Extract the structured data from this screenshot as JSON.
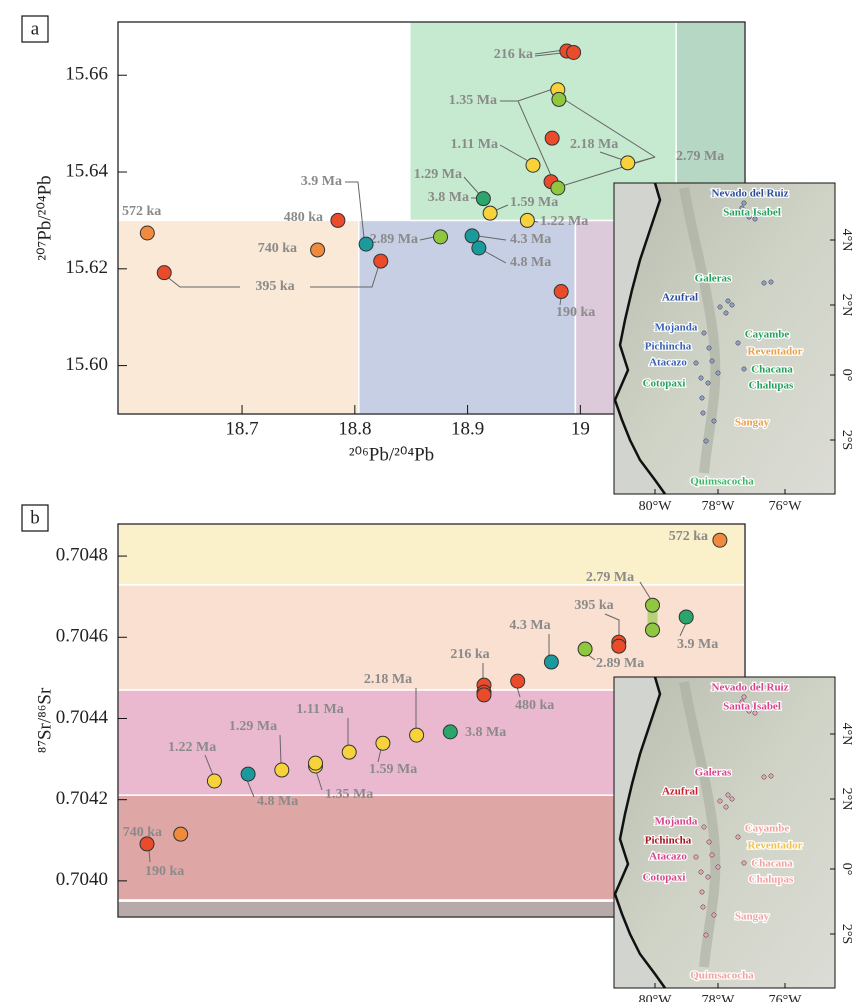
{
  "chart_data": [
    {
      "type": "scatter",
      "panel": "a",
      "x_label": "²⁰⁶Pb/²⁰⁴Pb",
      "y_label": "²⁰⁷Pb/²⁰⁴Pb",
      "xlim": [
        18.59,
        19.146
      ],
      "ylim": [
        15.59,
        15.671
      ],
      "xticks": [
        18.7,
        18.8,
        18.9,
        19
      ],
      "yticks": [
        {
          "value": 15.6,
          "label": "15.60"
        },
        15.62,
        15.64,
        15.66
      ],
      "regions": [
        {
          "color": "#f9e9d6",
          "x": [
            18.59,
            18.8035
          ],
          "y": [
            15.59,
            15.63
          ]
        },
        {
          "color": "#c7cfe4",
          "x": [
            18.8035,
            18.9956
          ],
          "y": [
            15.59,
            15.63
          ]
        },
        {
          "color": "#dccadb",
          "x": [
            18.9956,
            19.146
          ],
          "y": [
            15.59,
            15.63
          ]
        },
        {
          "color": "#c6eacf",
          "x": [
            18.8487,
            19.085
          ],
          "y": [
            15.63,
            15.671
          ]
        },
        {
          "color": "#b5d7c4",
          "x": [
            19.085,
            19.146
          ],
          "y": [
            15.63,
            15.671
          ]
        }
      ],
      "series": [
        {
          "color": "#ea4b2a",
          "x": [
            18.988,
            18.994,
            18.975,
            18.974,
            18.823,
            18.983,
            18.785,
            18.631
          ],
          "values": [
            15.665,
            15.6647,
            15.647,
            15.638,
            15.6216,
            15.6153,
            15.63,
            15.6192
          ]
        },
        {
          "color": "#f08a3c",
          "x": [
            18.616,
            18.767
          ],
          "values": [
            15.6274,
            15.6239
          ]
        },
        {
          "color": "#f7d23b",
          "x": [
            18.98,
            18.958,
            19.042,
            18.92,
            18.953
          ],
          "values": [
            15.657,
            15.6414,
            15.6419,
            15.6315,
            15.63
          ]
        },
        {
          "color": "#8fc73f",
          "x": [
            18.981,
            18.98,
            18.876
          ],
          "values": [
            15.655,
            15.6367,
            15.6266
          ]
        },
        {
          "color": "#2aa66c",
          "x": [
            18.914
          ],
          "values": [
            15.6345
          ]
        },
        {
          "color": "#1a9a9c",
          "x": [
            18.81,
            18.904,
            18.91
          ],
          "values": [
            15.6251,
            15.6268,
            15.6243
          ]
        }
      ],
      "annotations": [
        "216 ka",
        "1.35 Ma",
        "1.11 Ma",
        "2.18 Ma",
        "2.79 Ma",
        "1.29 Ma",
        "3.8 Ma",
        "1.59 Ma",
        "1.22 Ma",
        "572 ka",
        "480 ka",
        "740 ka",
        "3.9 Ma",
        "395 ka",
        "2.89 Ma",
        "4.3 Ma",
        "4.8 Ma",
        "190 ka"
      ]
    },
    {
      "type": "scatter",
      "panel": "b",
      "y_label": "⁸⁷Sr/⁸⁶Sr",
      "ylim": [
        0.703911,
        0.704879
      ],
      "yticks": [
        {
          "value": 0.704,
          "label": "0.7040"
        },
        0.7042,
        0.7044,
        0.7046,
        0.7048
      ],
      "regions": [
        {
          "color": "#faf0c9",
          "y": [
            0.704729,
            0.704879
          ]
        },
        {
          "color": "#f9e0d0",
          "y": [
            0.70447,
            0.704729
          ]
        },
        {
          "color": "#ebb9cf",
          "y": [
            0.704211,
            0.70447
          ]
        },
        {
          "color": "#dfa6a6",
          "y": [
            0.703953,
            0.704211
          ]
        },
        {
          "color": "#b9aaaa",
          "y": [
            0.703911,
            0.70395
          ]
        }
      ],
      "categories": [
        "190 ka",
        "740 ka",
        "1.22 Ma",
        "4.8 Ma",
        "1.29 Ma",
        "1.35 Ma",
        "1.11 Ma",
        "1.59 Ma",
        "2.18 Ma",
        "3.8 Ma",
        "216 ka",
        "480 ka",
        "4.3 Ma",
        "2.89 Ma",
        "395 ka",
        "2.79 Ma",
        "3.9 Ma",
        "572 ka"
      ],
      "series": [
        {
          "color": "#ea4b2a",
          "values": [
            0.704091,
            null,
            null,
            null,
            null,
            null,
            null,
            null,
            null,
            null,
            0.704482,
            0.704492,
            null,
            null,
            0.704588,
            null,
            null,
            null
          ]
        },
        {
          "color": "#ea4b2a",
          "values": [
            null,
            null,
            null,
            null,
            null,
            null,
            null,
            null,
            null,
            null,
            0.704465,
            null,
            null,
            null,
            0.704578,
            null,
            null,
            null
          ]
        },
        {
          "color": "#ea4b2a",
          "values": [
            null,
            null,
            null,
            null,
            null,
            null,
            null,
            null,
            null,
            null,
            0.704458,
            null,
            null,
            null,
            null,
            null,
            null,
            null
          ]
        },
        {
          "color": "#f08a3c",
          "values": [
            null,
            0.704115,
            null,
            null,
            null,
            null,
            null,
            null,
            null,
            null,
            null,
            null,
            null,
            null,
            null,
            null,
            null,
            0.704839
          ]
        },
        {
          "color": "#f7d23b",
          "values": [
            null,
            null,
            0.704246,
            null,
            0.704273,
            0.704283,
            0.704317,
            0.704339,
            0.704359,
            null,
            null,
            null,
            null,
            null,
            null,
            null,
            null,
            null
          ]
        },
        {
          "color": "#f7d23b",
          "values": [
            null,
            null,
            null,
            null,
            null,
            0.70429,
            null,
            null,
            null,
            null,
            null,
            null,
            null,
            null,
            null,
            null,
            null,
            null
          ]
        },
        {
          "color": "#1a9a9c",
          "values": [
            null,
            null,
            null,
            0.704263,
            null,
            null,
            null,
            null,
            null,
            null,
            null,
            null,
            0.704539,
            null,
            null,
            null,
            null,
            null
          ]
        },
        {
          "color": "#2aa66c",
          "values": [
            null,
            null,
            null,
            null,
            null,
            null,
            null,
            null,
            null,
            0.704367,
            null,
            null,
            null,
            null,
            null,
            null,
            0.70465,
            null
          ]
        },
        {
          "color": "#8fc73f",
          "values": [
            null,
            null,
            null,
            null,
            null,
            null,
            null,
            null,
            null,
            null,
            null,
            null,
            null,
            0.704571,
            null,
            0.704679,
            null,
            null
          ]
        },
        {
          "color": "#8fc73f",
          "values": [
            null,
            null,
            null,
            null,
            null,
            null,
            null,
            null,
            null,
            null,
            null,
            null,
            null,
            null,
            null,
            0.704618,
            null,
            null
          ]
        }
      ]
    }
  ],
  "maps": [
    {
      "lon_labels": [
        "80°W",
        "78°W",
        "76°W"
      ],
      "lat_labels": [
        "4°N",
        "2°N",
        "0°",
        "2°S"
      ],
      "volcanoes": [
        {
          "name": "Nevado del Ruiz",
          "color": "#2b4c9b"
        },
        {
          "name": "Santa Isabel",
          "color": "#27a05c"
        },
        {
          "name": "Galeras",
          "color": "#27a05c"
        },
        {
          "name": "Azufral",
          "color": "#2b4c9b"
        },
        {
          "name": "Mojanda",
          "color": "#3a62b0"
        },
        {
          "name": "Pichincha",
          "color": "#3a62b0"
        },
        {
          "name": "Cayambe",
          "color": "#27a05c"
        },
        {
          "name": "Reventador",
          "color": "#e8a04a"
        },
        {
          "name": "Atacazo",
          "color": "#3a62b0"
        },
        {
          "name": "Chacana",
          "color": "#27a05c"
        },
        {
          "name": "Cotopaxi",
          "color": "#27a05c"
        },
        {
          "name": "Chalupas",
          "color": "#27a05c"
        },
        {
          "name": "Sangay",
          "color": "#e8a04a"
        },
        {
          "name": "Quimsacocha",
          "color": "#3fb56a"
        }
      ]
    },
    {
      "lon_labels": [
        "80°W",
        "78°W",
        "76°W"
      ],
      "lat_labels": [
        "4°N",
        "2°N",
        "0°",
        "2°S"
      ],
      "volcanoes": [
        {
          "name": "Nevado del Ruiz",
          "color": "#d8458c"
        },
        {
          "name": "Santa Isabel",
          "color": "#d8458c"
        },
        {
          "name": "Galeras",
          "color": "#d8458c"
        },
        {
          "name": "Azufral",
          "color": "#c9202c"
        },
        {
          "name": "Mojanda",
          "color": "#d8458c"
        },
        {
          "name": "Pichincha",
          "color": "#a3141f"
        },
        {
          "name": "Cayambe",
          "color": "#f2a3a0"
        },
        {
          "name": "Reventador",
          "color": "#efc24a"
        },
        {
          "name": "Atacazo",
          "color": "#d8458c"
        },
        {
          "name": "Chacana",
          "color": "#f2a3a0"
        },
        {
          "name": "Cotopaxi",
          "color": "#d8458c"
        },
        {
          "name": "Chalupas",
          "color": "#f2a3a0"
        },
        {
          "name": "Sangay",
          "color": "#f2a3a0"
        },
        {
          "name": "Quimsacocha",
          "color": "#f2a3a0"
        }
      ]
    }
  ]
}
